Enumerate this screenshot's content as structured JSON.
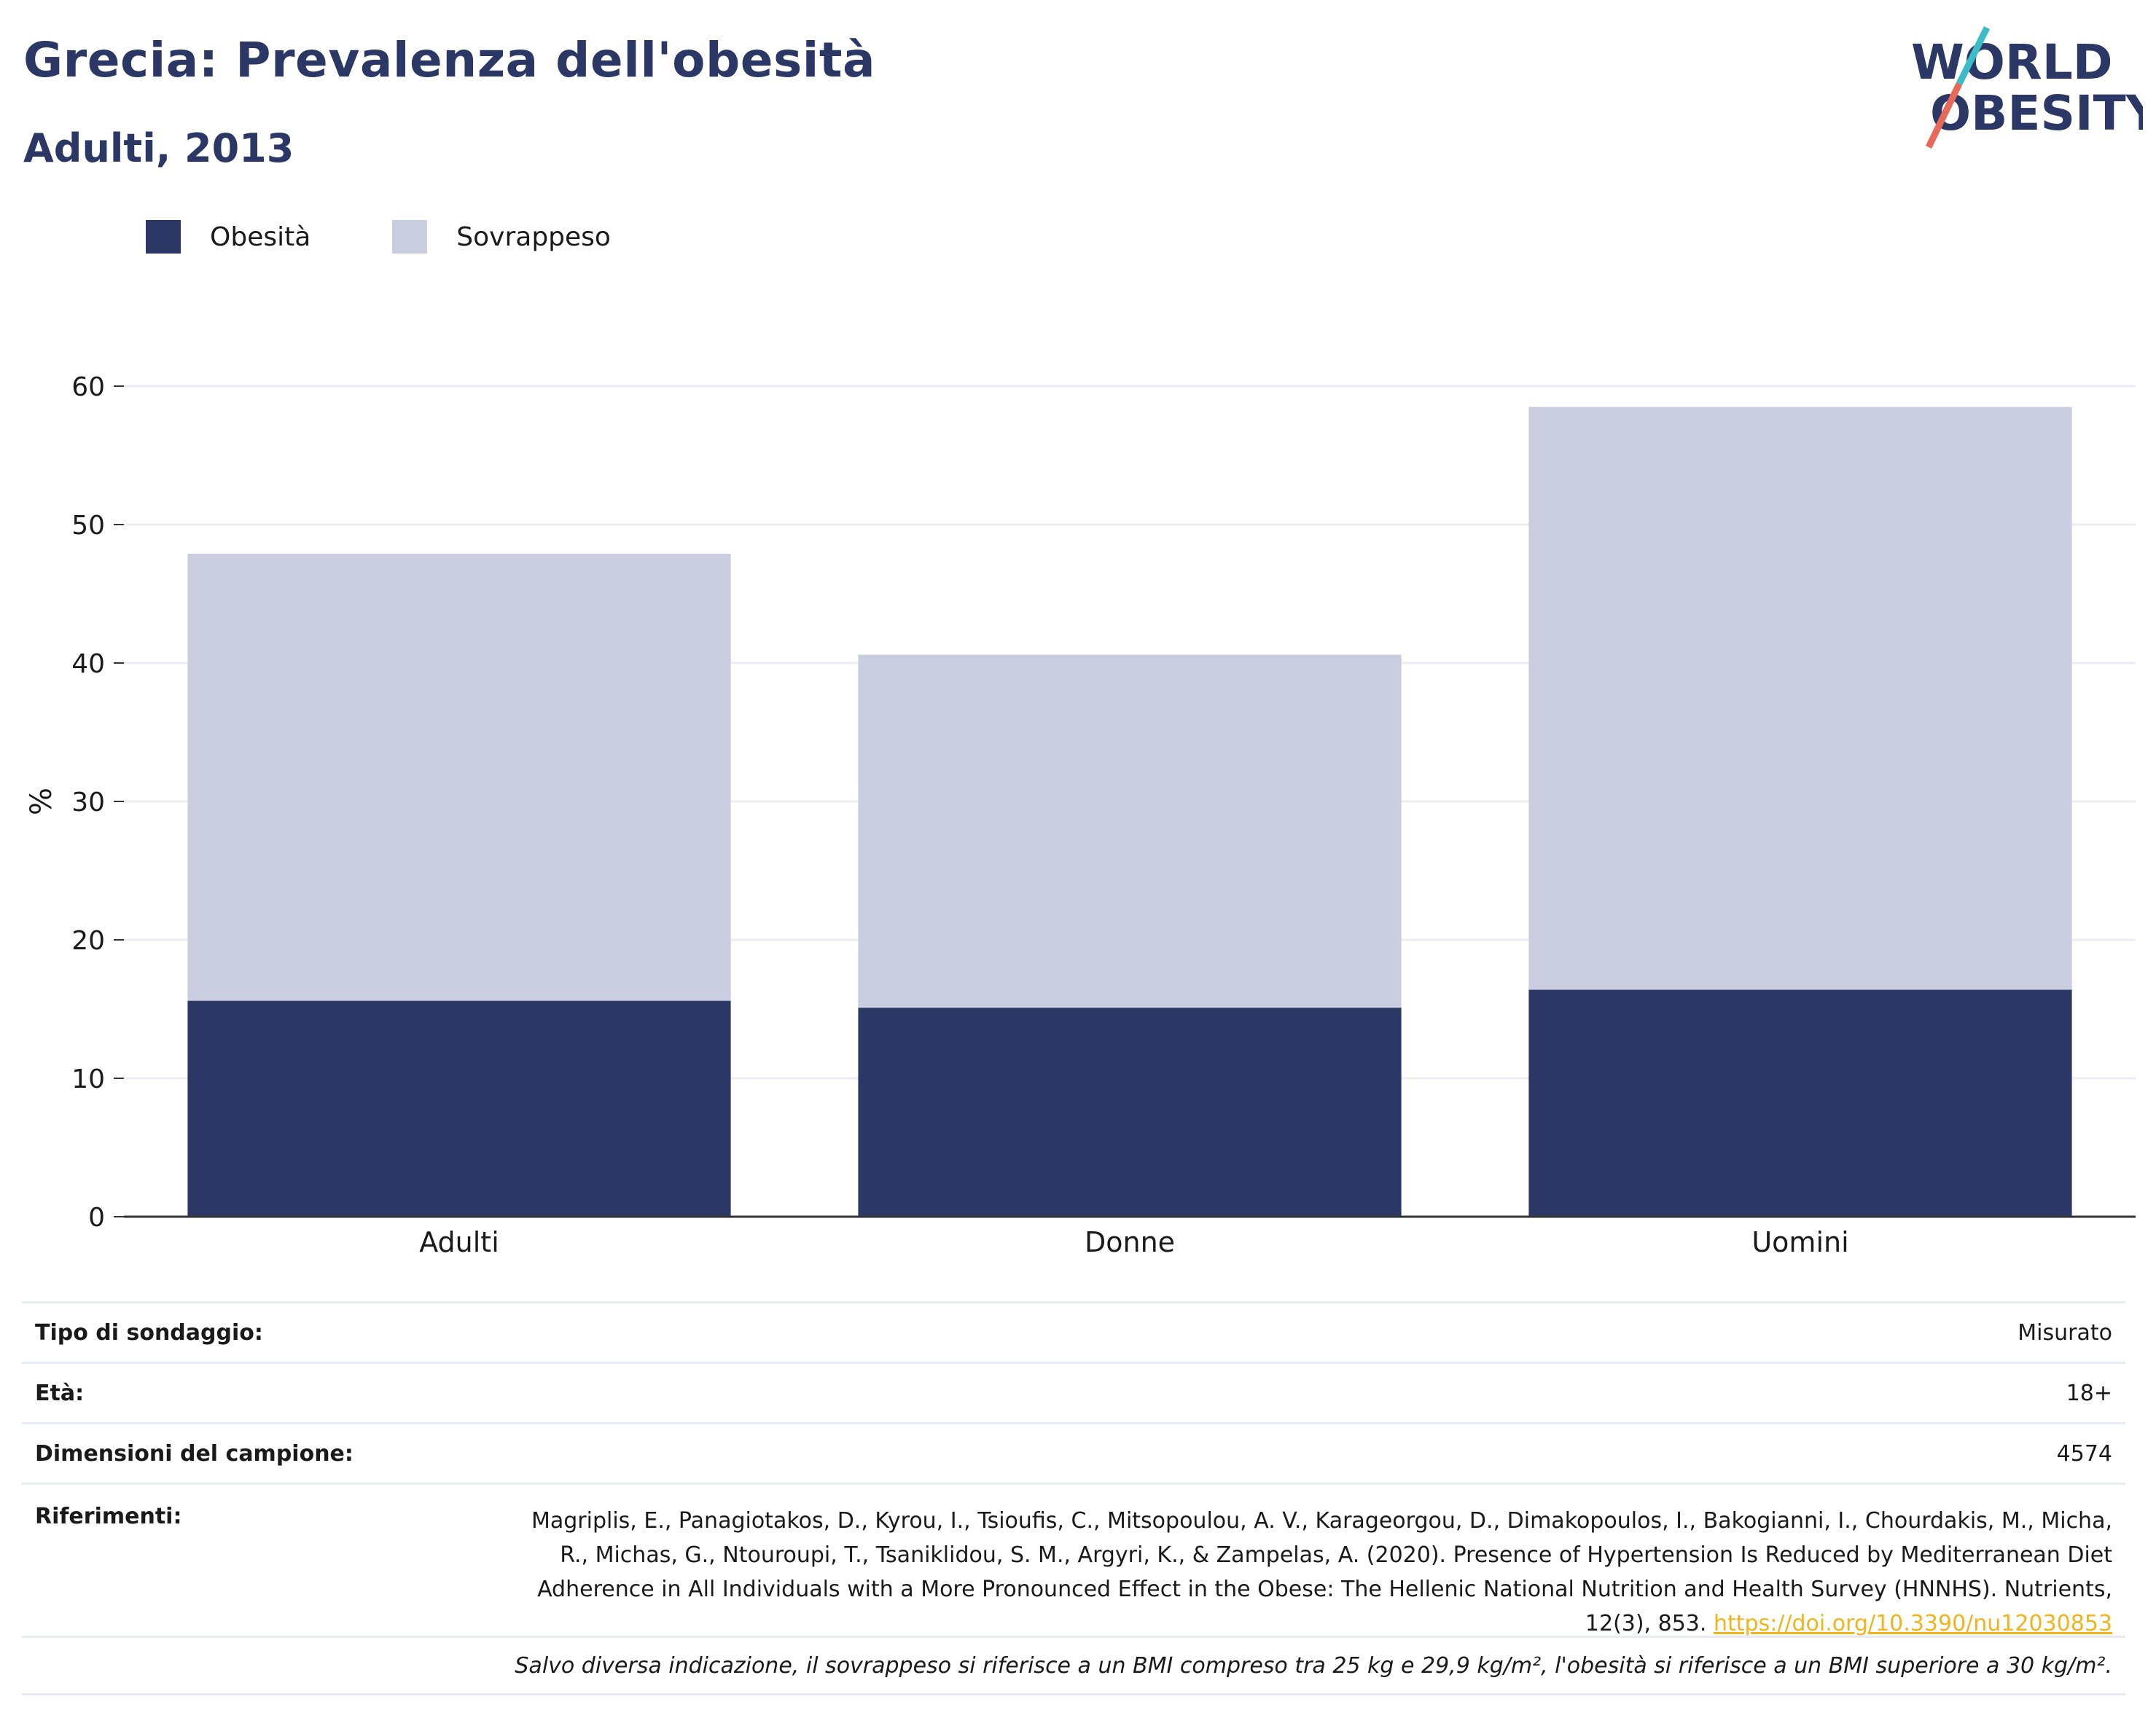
{
  "header": {
    "title": "Grecia: Prevalenza dell'obesità",
    "subtitle": "Adulti, 2013"
  },
  "logo": {
    "line1": "WORLD",
    "line2": "OBESITY"
  },
  "colors": {
    "title": "#2b3765",
    "obesity": "#2b3765",
    "overweight": "#cacce0",
    "grid": "#ececf2",
    "axis": "#333333",
    "link": "#f0b41c",
    "logo_slash_teal": "#3cbcc6",
    "logo_slash_red": "#e8685a"
  },
  "chart_data": {
    "type": "bar",
    "stacked": true,
    "categories": [
      "Adulti",
      "Donne",
      "Uomini"
    ],
    "series": [
      {
        "name": "Obesità",
        "values": [
          15.6,
          15.1,
          16.4
        ]
      },
      {
        "name": "Sovrappeso",
        "values": [
          32.3,
          25.5,
          42.1
        ]
      }
    ],
    "ylabel": "%",
    "ylim": [
      0,
      60
    ],
    "yticks": [
      0,
      10,
      20,
      30,
      40,
      50,
      60
    ],
    "grid": true,
    "legend": "top-left"
  },
  "info": {
    "survey_label": "Tipo di sondaggio:",
    "survey_value": "Misurato",
    "age_label": "Età:",
    "age_value": "18+",
    "sample_label": "Dimensioni del campione:",
    "sample_value": "4574",
    "refs_label": "Riferimenti:",
    "refs_text": "Magriplis, E., Panagiotakos, D., Kyrou, I., Tsioufis, C., Mitsopoulou, A. V., Karageorgou, D., Dimakopoulos, I., Bakogianni, I., Chourdakis, M., Micha, R., Michas, G., Ntouroupi, T., Tsaniklidou, S. M., Argyri, K., & Zampelas, A. (2020). Presence of Hypertension Is Reduced by Mediterranean Diet Adherence in All Individuals with a More Pronounced Effect in the Obese: The Hellenic National Nutrition and Health Survey (HNNHS). Nutrients, 12(3), 853.",
    "refs_link": "https://doi.org/10.3390/nu12030853",
    "note": "Salvo diversa indicazione, il sovrappeso si riferisce a un BMI compreso tra 25 kg e 29,9 kg/m², l'obesità si riferisce a un BMI superiore a 30 kg/m²."
  }
}
